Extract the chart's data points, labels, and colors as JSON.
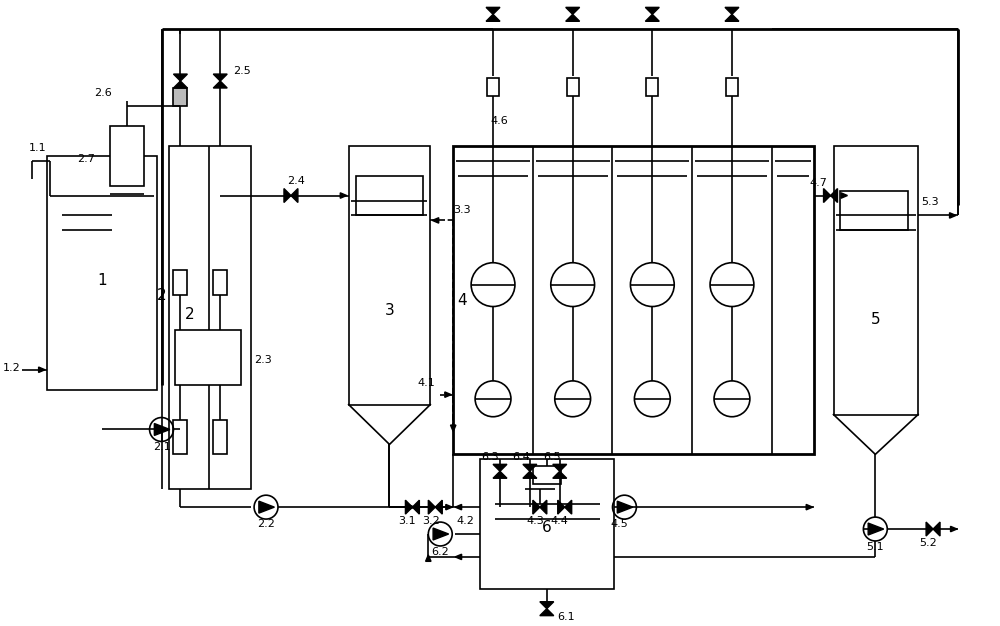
{
  "bg_color": "#ffffff",
  "lc": "#000000",
  "lw": 1.2,
  "figsize": [
    10.0,
    6.26
  ],
  "dpi": 100
}
